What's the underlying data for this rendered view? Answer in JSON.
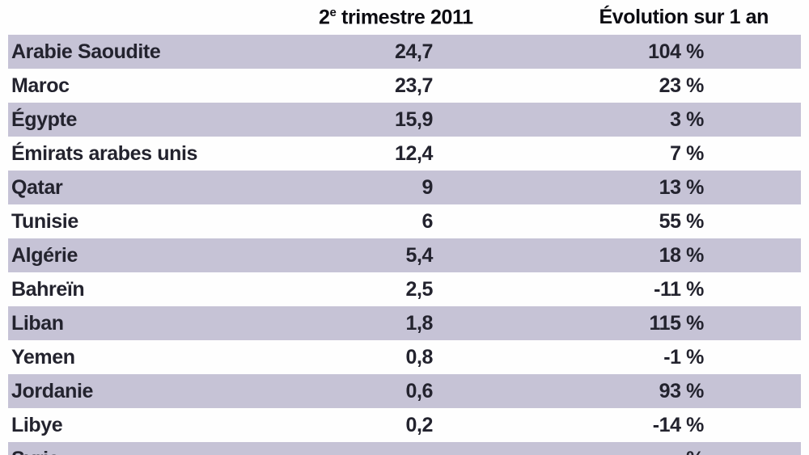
{
  "table": {
    "header": {
      "period_prefix": "2",
      "period_sup": "e",
      "period_rest": " trimestre 2011",
      "evolution": "Évolution sur 1 an"
    },
    "rows": [
      {
        "country": "Arabie Saoudite",
        "value": "24,7",
        "evolution": "104 %"
      },
      {
        "country": "Maroc",
        "value": "23,7",
        "evolution": "23 %"
      },
      {
        "country": "Égypte",
        "value": "15,9",
        "evolution": "3 %"
      },
      {
        "country": "Émirats arabes unis",
        "value": "12,4",
        "evolution": "7 %"
      },
      {
        "country": "Qatar",
        "value": "9",
        "evolution": "13 %"
      },
      {
        "country": "Tunisie",
        "value": "6",
        "evolution": "55 %"
      },
      {
        "country": "Algérie",
        "value": "5,4",
        "evolution": "18 %"
      },
      {
        "country": "Bahreïn",
        "value": "2,5",
        "evolution": "-11 %"
      },
      {
        "country": "Liban",
        "value": "1,8",
        "evolution": "115 %"
      },
      {
        "country": "Yemen",
        "value": "0,8",
        "evolution": "-1 %"
      },
      {
        "country": "Jordanie",
        "value": "0,6",
        "evolution": "93 %"
      },
      {
        "country": "Libye",
        "value": "0,2",
        "evolution": "-14 %"
      },
      {
        "country": "Syrie",
        "value": "",
        "evolution": "%"
      }
    ],
    "colors": {
      "stripe": "#c6c3d6",
      "body_text": "#23232e",
      "header_text": "#0c0c12",
      "background": "#fefefe"
    }
  },
  "chart_data": {
    "type": "table",
    "columns": [
      "",
      "2e trimestre 2011",
      "Évolution sur 1 an"
    ],
    "countries": [
      "Arabie Saoudite",
      "Maroc",
      "Égypte",
      "Émirats arabes unis",
      "Qatar",
      "Tunisie",
      "Algérie",
      "Bahreïn",
      "Liban",
      "Yemen",
      "Jordanie",
      "Libye",
      "Syrie"
    ],
    "values_t2_2011": [
      24.7,
      23.7,
      15.9,
      12.4,
      9,
      6,
      5.4,
      2.5,
      1.8,
      0.8,
      0.6,
      0.2,
      null
    ],
    "evolution_pct_1_an": [
      104,
      23,
      3,
      7,
      13,
      55,
      18,
      -11,
      115,
      -1,
      93,
      -14,
      null
    ],
    "layout": "striped rows (lavender/white alternating), first data row striped; numeric columns right-aligned",
    "notes": "Last row (Syrie) is cut off at the bottom edge of the screenshot; its values are not readable"
  }
}
